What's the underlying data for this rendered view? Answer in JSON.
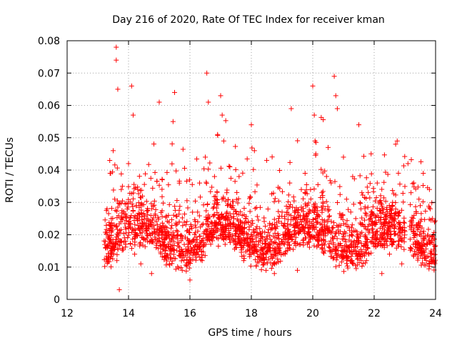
{
  "chart_data": {
    "type": "scatter",
    "title": "Day 216 of 2020, Rate Of TEC Index for receiver kman",
    "xlabel": "GPS time / hours",
    "ylabel": "ROTI / TECUs",
    "xlim": [
      12,
      24
    ],
    "ylim": [
      0,
      0.08
    ],
    "x_ticks": [
      12,
      14,
      16,
      18,
      20,
      22,
      24
    ],
    "y_ticks": [
      0,
      0.01,
      0.02,
      0.03,
      0.04,
      0.05,
      0.06,
      0.07,
      0.08
    ],
    "x_tick_labels": [
      "12",
      "14",
      "16",
      "18",
      "20",
      "22",
      "24"
    ],
    "y_tick_labels": [
      "0",
      "0.01",
      "0.02",
      "0.03",
      "0.04",
      "0.05",
      "0.06",
      "0.07",
      "0.08"
    ],
    "grid": true,
    "marker": "+",
    "color": "#ff0000",
    "series": [
      {
        "name": "ROTI",
        "x": [
          13.25,
          13.3,
          13.35,
          13.4,
          13.45,
          13.5,
          13.55,
          13.6,
          13.6,
          13.62,
          13.65,
          13.7,
          13.75,
          13.8,
          13.9,
          14.0,
          14.1,
          14.15,
          14.2,
          14.25,
          14.3,
          14.4,
          14.5,
          14.6,
          14.75,
          14.9,
          15.0,
          15.1,
          15.2,
          15.3,
          15.45,
          15.5,
          15.6,
          15.75,
          15.9,
          16.0,
          16.1,
          16.25,
          16.4,
          16.5,
          16.55,
          16.6,
          16.7,
          16.8,
          16.9,
          17.0,
          17.05,
          17.1,
          17.2,
          17.3,
          17.4,
          17.5,
          17.6,
          17.75,
          17.9,
          18.0,
          18.1,
          18.25,
          18.4,
          18.5,
          18.6,
          18.75,
          18.9,
          19.0,
          19.1,
          19.25,
          19.3,
          19.4,
          19.5,
          19.6,
          19.75,
          19.9,
          20.0,
          20.05,
          20.1,
          20.2,
          20.3,
          20.4,
          20.5,
          20.6,
          20.7,
          20.75,
          20.8,
          20.9,
          21.0,
          21.1,
          21.2,
          21.3,
          21.4,
          21.5,
          21.6,
          21.75,
          21.9,
          22.0,
          22.1,
          22.25,
          22.4,
          22.5,
          22.6,
          22.7,
          22.75,
          22.8,
          22.9,
          23.0,
          23.1,
          23.2,
          23.3,
          23.4,
          23.5,
          23.6,
          23.7,
          23.8,
          23.9,
          23.95
        ],
        "y": [
          0.016,
          0.028,
          0.013,
          0.039,
          0.022,
          0.046,
          0.031,
          0.078,
          0.074,
          0.012,
          0.065,
          0.003,
          0.024,
          0.035,
          0.018,
          0.042,
          0.066,
          0.057,
          0.014,
          0.029,
          0.034,
          0.011,
          0.023,
          0.019,
          0.008,
          0.016,
          0.061,
          0.037,
          0.013,
          0.026,
          0.055,
          0.064,
          0.021,
          0.009,
          0.015,
          0.006,
          0.018,
          0.027,
          0.012,
          0.044,
          0.07,
          0.061,
          0.022,
          0.038,
          0.051,
          0.063,
          0.057,
          0.049,
          0.033,
          0.041,
          0.029,
          0.016,
          0.038,
          0.012,
          0.024,
          0.054,
          0.046,
          0.018,
          0.011,
          0.043,
          0.023,
          0.008,
          0.015,
          0.027,
          0.014,
          0.036,
          0.059,
          0.021,
          0.009,
          0.017,
          0.039,
          0.024,
          0.066,
          0.057,
          0.045,
          0.018,
          0.033,
          0.028,
          0.047,
          0.036,
          0.069,
          0.063,
          0.059,
          0.021,
          0.044,
          0.031,
          0.016,
          0.038,
          0.025,
          0.054,
          0.033,
          0.012,
          0.027,
          0.019,
          0.036,
          0.008,
          0.024,
          0.014,
          0.029,
          0.048,
          0.049,
          0.017,
          0.011,
          0.021,
          0.042,
          0.033,
          0.026,
          0.016,
          0.029,
          0.039,
          0.012,
          0.034,
          0.025,
          0.015
        ]
      }
    ]
  }
}
